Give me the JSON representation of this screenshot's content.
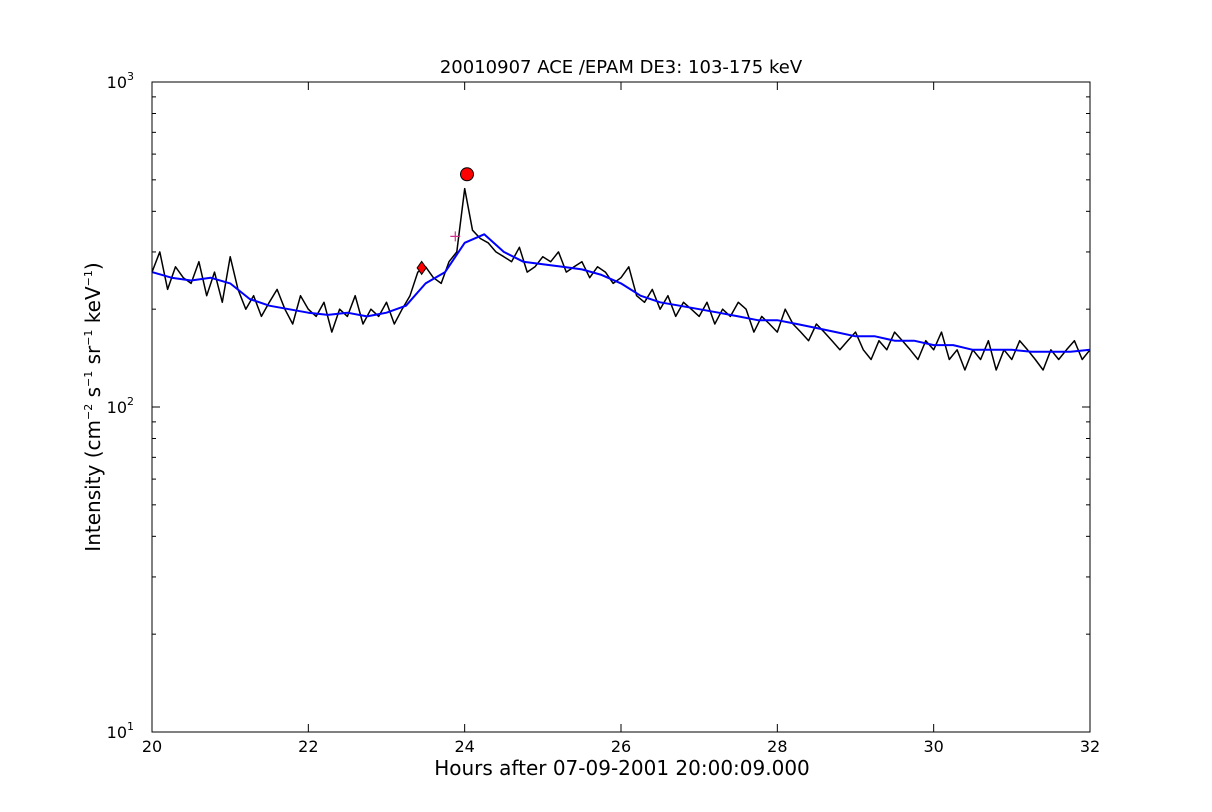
{
  "chart_data": {
    "type": "line",
    "title": "20010907 ACE /EPAM DE3: 103-175 keV",
    "xlabel": "Hours after 07-09-2001 20:00:09.000",
    "ylabel": {
      "prefix": "Intensity (cm",
      "exp1": "−2",
      "part2": " s",
      "exp2": "−1",
      "part3": " sr",
      "exp3": "−1",
      "part4": " keV",
      "exp4": "−1",
      "suffix": ")"
    },
    "xlim": [
      20,
      32
    ],
    "ylim": [
      10,
      1000
    ],
    "yscale": "log",
    "grid": false,
    "x_ticks": [
      20,
      22,
      24,
      26,
      28,
      30,
      32
    ],
    "x_tick_labels": [
      "20",
      "22",
      "24",
      "26",
      "28",
      "30",
      "32"
    ],
    "y_ticks": [
      {
        "base": "10",
        "exp": "1",
        "value": 10
      },
      {
        "base": "10",
        "exp": "2",
        "value": 100
      },
      {
        "base": "10",
        "exp": "3",
        "value": 1000
      }
    ],
    "series": [
      {
        "style": "raw",
        "color": "#000000",
        "x": [
          20.0,
          20.1,
          20.2,
          20.3,
          20.4,
          20.5,
          20.6,
          20.7,
          20.8,
          20.9,
          21.0,
          21.1,
          21.2,
          21.3,
          21.4,
          21.5,
          21.6,
          21.7,
          21.8,
          21.9,
          22.0,
          22.1,
          22.2,
          22.3,
          22.4,
          22.5,
          22.6,
          22.7,
          22.8,
          22.9,
          23.0,
          23.1,
          23.2,
          23.3,
          23.4,
          23.5,
          23.6,
          23.7,
          23.8,
          23.9,
          24.0,
          24.1,
          24.2,
          24.3,
          24.4,
          24.5,
          24.6,
          24.7,
          24.8,
          24.9,
          25.0,
          25.1,
          25.2,
          25.3,
          25.4,
          25.5,
          25.6,
          25.7,
          25.8,
          25.9,
          26.0,
          26.1,
          26.2,
          26.3,
          26.4,
          26.5,
          26.6,
          26.7,
          26.8,
          26.9,
          27.0,
          27.1,
          27.2,
          27.3,
          27.4,
          27.5,
          27.6,
          27.7,
          27.8,
          27.9,
          28.0,
          28.1,
          28.2,
          28.3,
          28.4,
          28.5,
          28.6,
          28.7,
          28.8,
          28.9,
          29.0,
          29.1,
          29.2,
          29.3,
          29.4,
          29.5,
          29.6,
          29.7,
          29.8,
          29.9,
          30.0,
          30.1,
          30.2,
          30.3,
          30.4,
          30.5,
          30.6,
          30.7,
          30.8,
          30.9,
          31.0,
          31.1,
          31.2,
          31.3,
          31.4,
          31.5,
          31.6,
          31.7,
          31.8,
          31.9,
          32.0
        ],
        "y": [
          260,
          300,
          230,
          270,
          250,
          240,
          280,
          220,
          260,
          210,
          290,
          230,
          200,
          220,
          190,
          210,
          230,
          200,
          180,
          220,
          200,
          190,
          210,
          170,
          200,
          190,
          220,
          180,
          200,
          190,
          210,
          180,
          200,
          220,
          260,
          270,
          250,
          240,
          280,
          300,
          470,
          350,
          330,
          320,
          300,
          290,
          280,
          310,
          260,
          270,
          290,
          280,
          300,
          260,
          270,
          280,
          250,
          270,
          260,
          240,
          250,
          270,
          220,
          210,
          230,
          200,
          220,
          190,
          210,
          200,
          190,
          210,
          180,
          200,
          190,
          210,
          200,
          170,
          190,
          180,
          170,
          200,
          180,
          170,
          160,
          180,
          170,
          160,
          150,
          160,
          170,
          150,
          140,
          160,
          150,
          170,
          160,
          150,
          140,
          160,
          150,
          170,
          140,
          150,
          130,
          150,
          140,
          160,
          130,
          150,
          140,
          160,
          150,
          140,
          130,
          150,
          140,
          150,
          160,
          140,
          150
        ]
      },
      {
        "style": "smoothed",
        "color": "#0000ff",
        "x": [
          20.0,
          20.25,
          20.5,
          20.75,
          21.0,
          21.25,
          21.5,
          21.75,
          22.0,
          22.25,
          22.5,
          22.75,
          23.0,
          23.25,
          23.5,
          23.75,
          24.0,
          24.25,
          24.5,
          24.75,
          25.0,
          25.25,
          25.5,
          25.75,
          26.0,
          26.25,
          26.5,
          26.75,
          27.0,
          27.25,
          27.5,
          27.75,
          28.0,
          28.25,
          28.5,
          28.75,
          29.0,
          29.25,
          29.5,
          29.75,
          30.0,
          30.25,
          30.5,
          30.75,
          31.0,
          31.25,
          31.5,
          31.75,
          32.0
        ],
        "y": [
          260,
          250,
          245,
          250,
          240,
          215,
          205,
          200,
          195,
          192,
          195,
          190,
          195,
          205,
          240,
          260,
          320,
          340,
          300,
          280,
          275,
          270,
          265,
          255,
          240,
          220,
          210,
          205,
          200,
          195,
          190,
          185,
          185,
          180,
          175,
          170,
          165,
          165,
          160,
          160,
          155,
          155,
          150,
          150,
          150,
          148,
          148,
          148,
          150
        ]
      }
    ],
    "markers": [
      {
        "shape": "circle",
        "color": "#ff0000",
        "x": 24.03,
        "y": 520
      },
      {
        "shape": "diamond",
        "color": "#ff0000",
        "x": 23.45,
        "y": 268
      },
      {
        "shape": "plus",
        "color": "#d0308a",
        "x": 23.88,
        "y": 335
      }
    ],
    "colors": {
      "raw": "#000000",
      "smoothed": "#0000ff",
      "marker": "#ff0000"
    }
  }
}
